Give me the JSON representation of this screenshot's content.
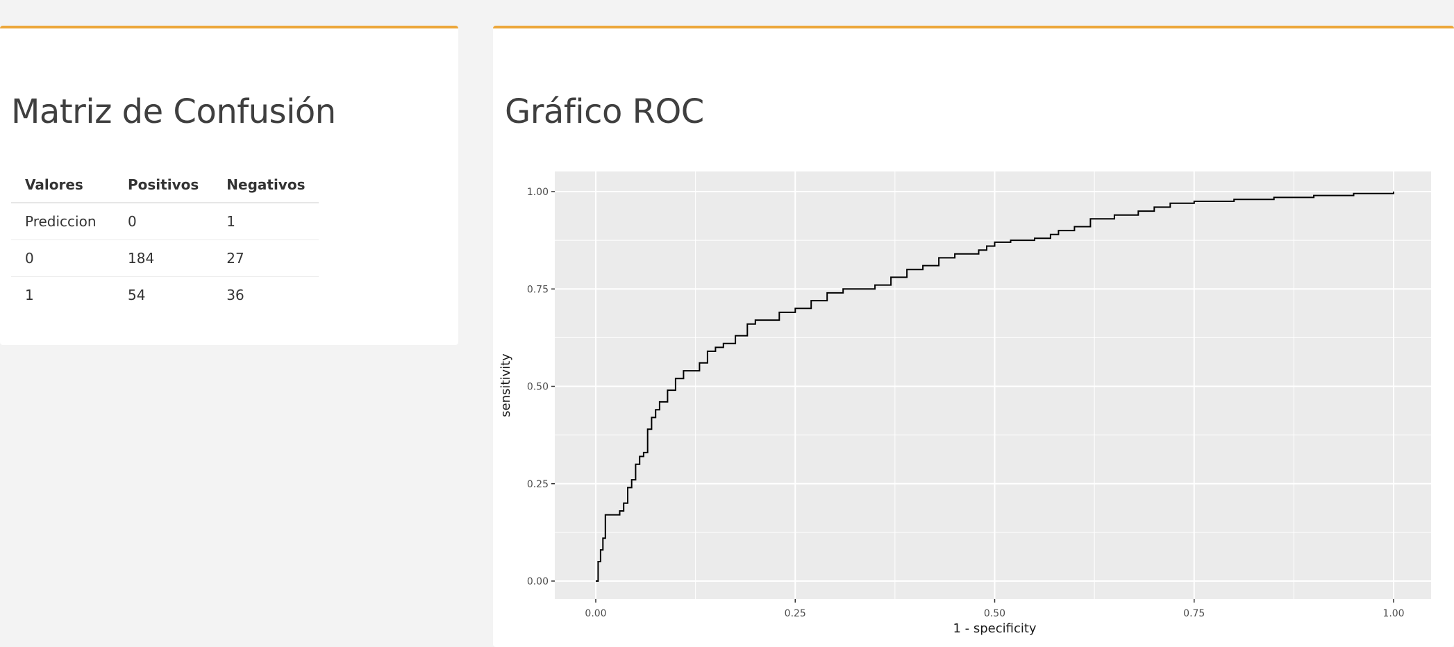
{
  "confusion_panel": {
    "title": "Matriz de Confusión",
    "table": {
      "headers": [
        "Valores",
        "Positivos",
        "Negativos"
      ],
      "rows": [
        [
          "Prediccion",
          "0",
          "1"
        ],
        [
          "0",
          "184",
          "27"
        ],
        [
          "1",
          "54",
          "36"
        ]
      ]
    }
  },
  "roc_panel": {
    "title": "Gráfico ROC"
  },
  "colors": {
    "accent": "#eca73a",
    "plot_background": "#ebebeb",
    "grid": "#ffffff",
    "curve": "#000000"
  },
  "chart_data": {
    "type": "line",
    "title": "",
    "xlabel": "1 - specificity",
    "ylabel": "sensitivity",
    "xlim": [
      0,
      1
    ],
    "ylim": [
      0,
      1
    ],
    "x_ticks": [
      "0.00",
      "0.25",
      "0.50",
      "0.75",
      "1.00"
    ],
    "y_ticks": [
      "0.00",
      "0.25",
      "0.50",
      "0.75",
      "1.00"
    ],
    "grid": true,
    "series": [
      {
        "x": [
          0.0,
          0.003,
          0.006,
          0.009,
          0.012,
          0.02,
          0.03,
          0.035,
          0.04,
          0.045,
          0.05,
          0.055,
          0.06,
          0.065,
          0.07,
          0.075,
          0.08,
          0.09,
          0.1,
          0.11,
          0.12,
          0.13,
          0.14,
          0.15,
          0.16,
          0.175,
          0.19,
          0.2,
          0.21,
          0.23,
          0.25,
          0.27,
          0.29,
          0.31,
          0.33,
          0.35,
          0.37,
          0.39,
          0.41,
          0.43,
          0.45,
          0.47,
          0.48,
          0.49,
          0.5,
          0.52,
          0.55,
          0.57,
          0.58,
          0.6,
          0.62,
          0.65,
          0.68,
          0.7,
          0.72,
          0.75,
          0.8,
          0.85,
          0.9,
          0.95,
          1.0
        ],
        "y": [
          0.0,
          0.05,
          0.08,
          0.11,
          0.17,
          0.17,
          0.18,
          0.2,
          0.24,
          0.26,
          0.3,
          0.32,
          0.33,
          0.39,
          0.42,
          0.44,
          0.46,
          0.49,
          0.52,
          0.54,
          0.54,
          0.56,
          0.59,
          0.6,
          0.61,
          0.63,
          0.66,
          0.67,
          0.67,
          0.69,
          0.7,
          0.72,
          0.74,
          0.75,
          0.75,
          0.76,
          0.78,
          0.8,
          0.81,
          0.83,
          0.84,
          0.84,
          0.85,
          0.86,
          0.87,
          0.875,
          0.88,
          0.89,
          0.9,
          0.91,
          0.93,
          0.94,
          0.95,
          0.96,
          0.97,
          0.975,
          0.98,
          0.985,
          0.99,
          0.995,
          1.0
        ]
      }
    ]
  }
}
